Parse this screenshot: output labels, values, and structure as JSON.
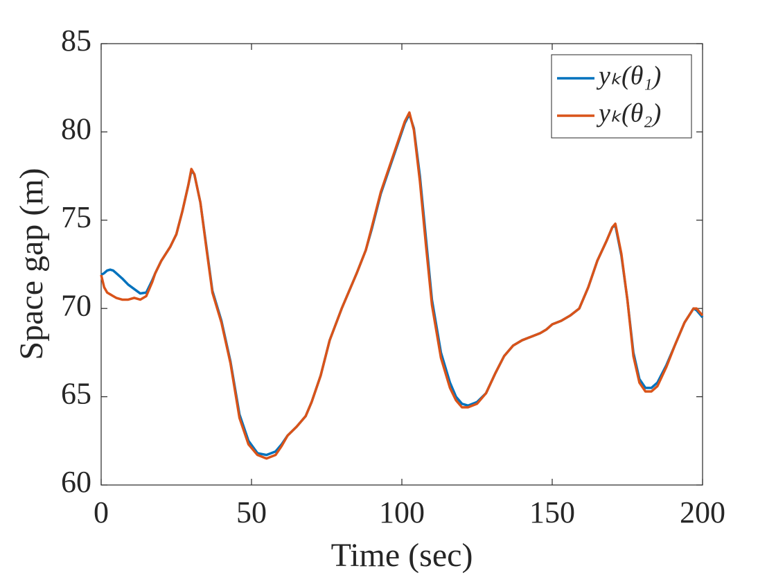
{
  "chart_data": {
    "type": "line",
    "xlabel": "Time (sec)",
    "ylabel": "Space gap (m)",
    "x": [
      0,
      1,
      2,
      3,
      4,
      5,
      7,
      9,
      11,
      13,
      15,
      17,
      18,
      20,
      23,
      25,
      27,
      29,
      30,
      31,
      33,
      35,
      37,
      40,
      43,
      46,
      49,
      52,
      55,
      58,
      60,
      62,
      65,
      68,
      70,
      73,
      76,
      80,
      85,
      88,
      90,
      93,
      96,
      99,
      101,
      102.5,
      104,
      106,
      108,
      110,
      113,
      116,
      118,
      120,
      122,
      125,
      128,
      131,
      134,
      137,
      140,
      143,
      146,
      148,
      150,
      153,
      156,
      159,
      162,
      165,
      168,
      170,
      171,
      173,
      175,
      177,
      179,
      181,
      183,
      185,
      188,
      191,
      194,
      197,
      198,
      200
    ],
    "series": [
      {
        "name": "yₖ(θ₁)",
        "color": "#0072bd",
        "values": [
          71.9,
          72.0,
          72.15,
          72.2,
          72.15,
          72.0,
          71.7,
          71.35,
          71.1,
          70.85,
          70.9,
          71.6,
          72.0,
          72.7,
          73.5,
          74.2,
          75.5,
          77.0,
          77.8,
          77.6,
          76.0,
          73.5,
          71.0,
          69.3,
          67.0,
          64.0,
          62.5,
          61.8,
          61.7,
          61.9,
          62.3,
          62.8,
          63.3,
          63.9,
          64.7,
          66.2,
          68.2,
          70.0,
          72.0,
          73.3,
          74.5,
          76.5,
          78.0,
          79.5,
          80.5,
          81.0,
          80.2,
          77.5,
          74.0,
          70.5,
          67.5,
          65.8,
          65.0,
          64.6,
          64.5,
          64.7,
          65.2,
          66.3,
          67.3,
          67.9,
          68.2,
          68.4,
          68.6,
          68.8,
          69.1,
          69.3,
          69.6,
          70.0,
          71.2,
          72.7,
          73.8,
          74.6,
          74.7,
          73.0,
          70.5,
          67.5,
          66.0,
          65.5,
          65.5,
          65.8,
          66.8,
          68.0,
          69.2,
          70.0,
          69.9,
          69.5
        ]
      },
      {
        "name": "yₖ(θ₂)",
        "color": "#d95319",
        "values": [
          71.9,
          71.2,
          70.9,
          70.8,
          70.7,
          70.6,
          70.5,
          70.5,
          70.6,
          70.5,
          70.7,
          71.5,
          72.0,
          72.7,
          73.5,
          74.2,
          75.5,
          77.0,
          77.9,
          77.6,
          76.0,
          73.4,
          70.9,
          69.2,
          66.9,
          63.8,
          62.3,
          61.7,
          61.5,
          61.7,
          62.2,
          62.8,
          63.3,
          63.9,
          64.7,
          66.2,
          68.2,
          70.0,
          72.0,
          73.3,
          74.6,
          76.6,
          78.1,
          79.6,
          80.6,
          81.1,
          80.1,
          77.2,
          73.6,
          70.2,
          67.2,
          65.5,
          64.8,
          64.4,
          64.4,
          64.6,
          65.2,
          66.3,
          67.3,
          67.9,
          68.2,
          68.4,
          68.6,
          68.8,
          69.1,
          69.3,
          69.6,
          70.0,
          71.2,
          72.7,
          73.8,
          74.6,
          74.8,
          73.1,
          70.5,
          67.3,
          65.8,
          65.3,
          65.3,
          65.6,
          66.7,
          68.0,
          69.2,
          70.0,
          70.0,
          69.6
        ]
      }
    ],
    "xlim": [
      0,
      200
    ],
    "xticks": [
      0,
      50,
      100,
      150,
      200
    ],
    "ylim": [
      60,
      85
    ],
    "yticks": [
      60,
      65,
      70,
      75,
      80,
      85
    ],
    "grid": false,
    "legend": "northeast"
  }
}
